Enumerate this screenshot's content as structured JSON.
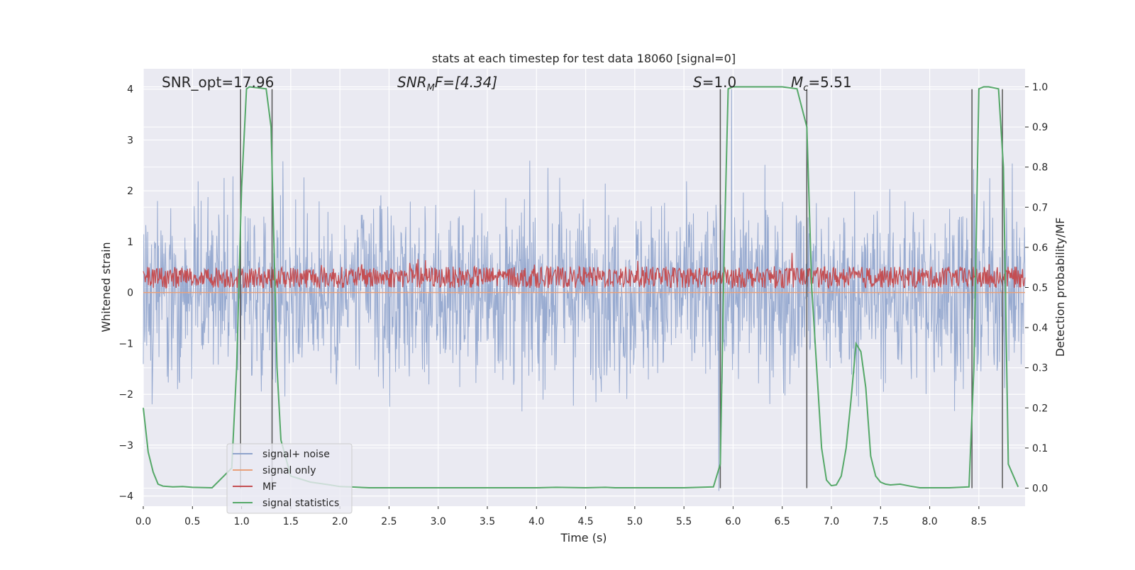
{
  "chart_data": {
    "type": "line",
    "title": "stats at each timestep for test data 18060 [signal=0]",
    "xlabel": "Time (s)",
    "ylabel_left": "Whitened strain",
    "ylabel_right": "Detection probability/MF",
    "xlim": [
      0.0,
      8.97
    ],
    "ylim_left": [
      -4.2,
      4.4
    ],
    "ylim_right": [
      -0.045,
      1.045
    ],
    "x_ticks": [
      "0.0",
      "0.5",
      "1.0",
      "1.5",
      "2.0",
      "2.5",
      "3.0",
      "3.5",
      "4.0",
      "4.5",
      "5.0",
      "5.5",
      "6.0",
      "6.5",
      "7.0",
      "7.5",
      "8.0",
      "8.5"
    ],
    "y_ticks_left": [
      "−4",
      "−3",
      "−2",
      "−1",
      "0",
      "1",
      "2",
      "3",
      "4"
    ],
    "y_ticks_right": [
      "0.0",
      "0.1",
      "0.2",
      "0.3",
      "0.4",
      "0.5",
      "0.6",
      "0.7",
      "0.8",
      "0.9",
      "1.0"
    ],
    "grid": true,
    "legend_position": "lower-left",
    "annotations": {
      "snr_opt": "SNR_opt=17.96",
      "snr_mf_sym": "SNR",
      "snr_mf_sub": "M",
      "snr_mf_rest": "F=[4.34]",
      "s_sym": "S",
      "s_rest": "=1.0",
      "mc_sym": "M",
      "mc_sub": "c",
      "mc_rest": "=5.51"
    },
    "series": [
      {
        "name": "signal+ noise",
        "color": "#8ea3cc",
        "axis": "left",
        "noise_amplitude": 1.7,
        "peak_range": [
          -3.9,
          4.0
        ]
      },
      {
        "name": "signal only",
        "color": "#e8a07a",
        "axis": "left",
        "values_constant": 0.0
      },
      {
        "name": "MF",
        "color": "#c44e52",
        "axis": "left",
        "baseline": 0.05,
        "mean": 0.3,
        "peak": 0.95
      },
      {
        "name": "signal statistics",
        "color": "#55a868",
        "axis": "right",
        "x": [
          0.0,
          0.05,
          0.1,
          0.15,
          0.2,
          0.3,
          0.4,
          0.5,
          0.7,
          0.9,
          0.95,
          1.0,
          1.05,
          1.08,
          1.25,
          1.3,
          1.33,
          1.36,
          1.4,
          1.5,
          1.7,
          1.9,
          2.0,
          2.1,
          2.3,
          3.0,
          4.0,
          4.2,
          4.5,
          4.7,
          4.8,
          5.0,
          5.5,
          5.8,
          5.87,
          5.91,
          5.95,
          6.0,
          6.5,
          6.65,
          6.75,
          6.8,
          6.9,
          6.95,
          7.0,
          7.05,
          7.1,
          7.15,
          7.2,
          7.25,
          7.3,
          7.35,
          7.4,
          7.45,
          7.5,
          7.55,
          7.6,
          7.7,
          7.8,
          7.9,
          8.0,
          8.2,
          8.4,
          8.45,
          8.5,
          8.55,
          8.6,
          8.7,
          8.75,
          8.8,
          8.9
        ],
        "y": [
          0.2,
          0.09,
          0.04,
          0.01,
          0.005,
          0.003,
          0.004,
          0.002,
          0.001,
          0.05,
          0.3,
          0.75,
          0.995,
          1.0,
          0.995,
          0.9,
          0.6,
          0.3,
          0.12,
          0.03,
          0.015,
          0.008,
          0.004,
          0.003,
          0.001,
          0.001,
          0.001,
          0.002,
          0.001,
          0.002,
          0.001,
          0.001,
          0.001,
          0.003,
          0.06,
          0.6,
          0.995,
          1.0,
          1.0,
          0.995,
          0.9,
          0.5,
          0.1,
          0.02,
          0.006,
          0.008,
          0.03,
          0.1,
          0.22,
          0.36,
          0.34,
          0.25,
          0.08,
          0.03,
          0.015,
          0.01,
          0.008,
          0.01,
          0.005,
          0.001,
          0.001,
          0.001,
          0.003,
          0.3,
          0.995,
          1.0,
          1.0,
          0.995,
          0.8,
          0.06,
          0.003
        ]
      }
    ],
    "vertical_markers_x": [
      0.99,
      1.31,
      5.87,
      6.75,
      8.43,
      8.74
    ],
    "marker_color": "#555555"
  }
}
